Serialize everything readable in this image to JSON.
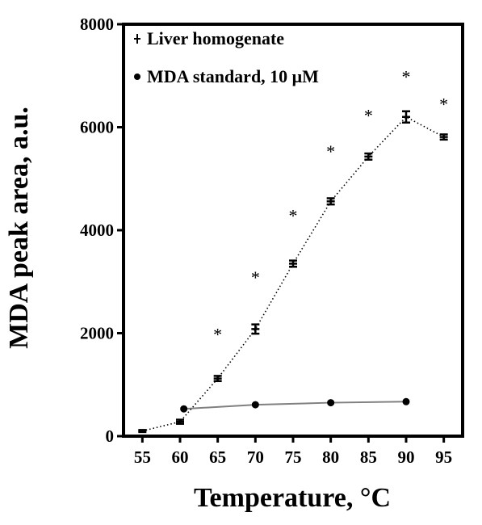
{
  "chart_data": {
    "type": "line",
    "xlabel": "Temperature, °C",
    "ylabel": "MDA peak area, a.u.",
    "x_ticks": [
      "55",
      "60",
      "65",
      "70",
      "75",
      "80",
      "85",
      "90",
      "95"
    ],
    "y_ticks": [
      "0",
      "2000",
      "4000",
      "6000",
      "8000"
    ],
    "xlim": [
      52.5,
      97.5
    ],
    "ylim": [
      0,
      8000
    ],
    "grid": false,
    "legend_position": "top-left",
    "series": [
      {
        "name": "Liver homogenate",
        "line_style": "dotted",
        "marker": "plus",
        "color": "#000000",
        "x": [
          55,
          60,
          65,
          70,
          75,
          80,
          85,
          90,
          95
        ],
        "y": [
          100,
          280,
          1120,
          2080,
          3350,
          4560,
          5430,
          6200,
          5810
        ],
        "error": [
          20,
          40,
          50,
          90,
          60,
          60,
          60,
          110,
          50
        ]
      },
      {
        "name": "MDA standard, 10 μM",
        "line_style": "solid",
        "marker": "circle",
        "color": "#808080",
        "x": [
          60.5,
          70,
          80,
          90
        ],
        "y": [
          530,
          610,
          650,
          670
        ]
      }
    ],
    "annotations": [
      {
        "text": "*",
        "x": 65,
        "y": 2050
      },
      {
        "text": "*",
        "x": 70,
        "y": 3150
      },
      {
        "text": "*",
        "x": 75,
        "y": 4350
      },
      {
        "text": "*",
        "x": 80,
        "y": 5600
      },
      {
        "text": "*",
        "x": 85,
        "y": 6300
      },
      {
        "text": "*",
        "x": 90,
        "y": 7050
      },
      {
        "text": "*",
        "x": 95,
        "y": 6520
      }
    ]
  }
}
